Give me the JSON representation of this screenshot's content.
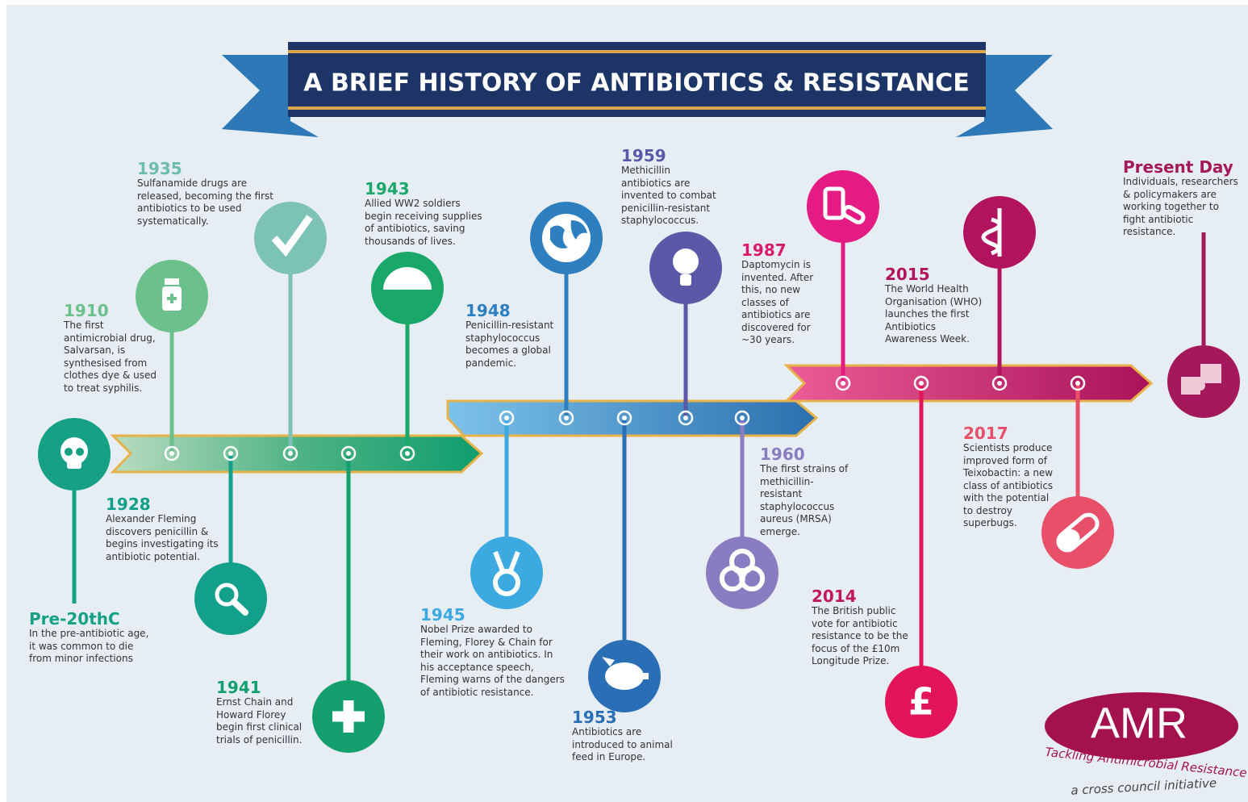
{
  "title": "A BRIEF HISTORY OF ANTIBIOTICS & RESISTANCE",
  "events": [
    {
      "year": "Pre-20thC",
      "lines": [
        "In the pre-antibiotic age,",
        "it was common to die",
        "from minor infections"
      ]
    },
    {
      "year": "1910",
      "lines": [
        "The first",
        "antimicrobial drug,",
        "Salvarsan, is",
        "synthesised from",
        "clothes dye & used",
        "to treat syphilis."
      ]
    },
    {
      "year": "1928",
      "lines": [
        "Alexander Fleming",
        "discovers penicillin &",
        "begins investigating its",
        "antibiotic potential."
      ]
    },
    {
      "year": "1935",
      "lines": [
        "Sulfanamide drugs are",
        "released, becoming the first",
        "antibiotics to be used",
        "systematically."
      ]
    },
    {
      "year": "1941",
      "lines": [
        "Ernst Chain and",
        "Howard Florey",
        "begin first clinical",
        "trials of penicillin."
      ]
    },
    {
      "year": "1943",
      "lines": [
        "Allied WW2 soldiers",
        "begin receiving supplies",
        "of antibiotics, saving",
        "thousands of lives."
      ]
    },
    {
      "year": "1945",
      "lines": [
        "Nobel Prize awarded to",
        "Fleming, Florey & Chain for",
        "their work on antibiotics. In",
        "his acceptance speech,",
        "Fleming warns of the dangers",
        "of antibiotic resistance."
      ]
    },
    {
      "year": "1948",
      "lines": [
        "Penicillin-resistant",
        "staphylococcus",
        "becomes a global",
        "pandemic."
      ]
    },
    {
      "year": "1953",
      "lines": [
        "Antibiotics are",
        "introduced to animal",
        "feed in Europe."
      ]
    },
    {
      "year": "1959",
      "lines": [
        "Methicillin",
        "antibiotics are",
        "invented to combat",
        "penicillin-resistant",
        "staphylococcus."
      ]
    },
    {
      "year": "1960",
      "lines": [
        "The first strains of",
        "methicillin-",
        "resistant",
        "staphylococcus",
        "aureus (MRSA)",
        "emerge."
      ]
    },
    {
      "year": "1987",
      "lines": [
        "Daptomycin is",
        "invented. After",
        "this, no new",
        "classes of",
        "antibiotics are",
        "discovered for",
        "~30 years."
      ]
    },
    {
      "year": "2014",
      "lines": [
        "The British public",
        "vote for antibiotic",
        "resistance to be the",
        "focus of the £10m",
        "Longitude Prize."
      ],
      "icon_text": "£"
    },
    {
      "year": "2015",
      "lines": [
        "The World Health",
        "Organisation (WHO)",
        "launches the first",
        "Antibiotics",
        "Awareness Week."
      ]
    },
    {
      "year": "2017",
      "lines": [
        "Scientists produce",
        "improved form of",
        "Teixobactin: a new",
        "class of antibiotics",
        "with the potential",
        "to destroy",
        "superbugs."
      ]
    },
    {
      "year": "Present Day",
      "lines": [
        "Individuals, researchers",
        "& policymakers  are",
        "working together to",
        "fight antibiotic",
        "resistance."
      ]
    }
  ],
  "logo": {
    "name": "AMR",
    "tagline": "Tackling Antimicrobial Resistance",
    "subline": "a cross council initiative"
  }
}
